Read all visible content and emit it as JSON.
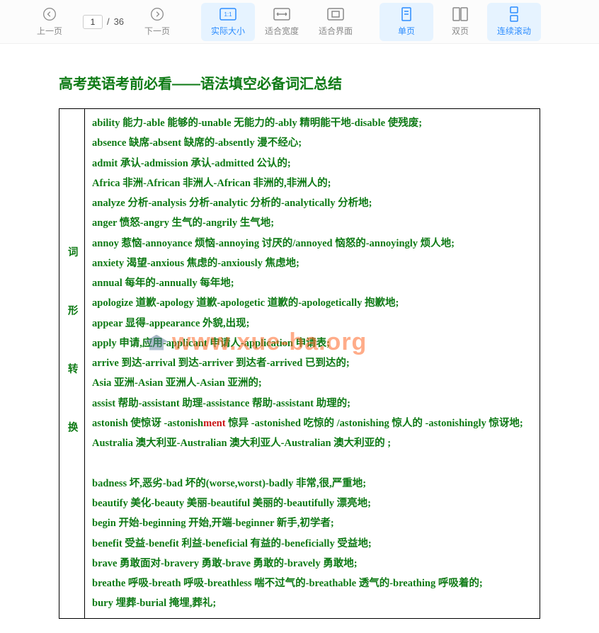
{
  "toolbar": {
    "prev": "上一页",
    "next": "下一页",
    "page_current": "1",
    "page_sep": "/",
    "page_total": "36",
    "actual_size": "实际大小",
    "fit_width": "适合宽度",
    "fit_page": "适合界面",
    "single_page": "单页",
    "double_page": "双页",
    "continuous": "连续滚动"
  },
  "doc": {
    "title": "高考英语考前必看——语法填空必备词汇总结",
    "row_label": "词形转换",
    "watermark": "www.xue-ba.org",
    "lines": [
      "ability 能力-able 能够的-unable 无能力的-ably 精明能干地-disable 使残废;",
      "absence 缺席-absent 缺席的-absently 漫不经心;",
      "admit 承认-admission 承认-admitted 公认的;",
      "Africa 非洲-African 非洲人-African 非洲的,非洲人的;",
      "analyze 分析-analysis 分析-analytic 分析的-analytically 分析地;",
      "anger 愤怒-angry 生气的-angrily 生气地;",
      "annoy 惹恼-annoyance 烦恼-annoying 讨厌的/annoyed 恼怒的-annoyingly 烦人地;",
      "anxiety 渴望-anxious 焦虑的-anxiously 焦虑地;",
      "annual 每年的-annually 每年地;",
      "apologize 道歉-apology 道歉-apologetic 道歉的-apologetically 抱歉地;",
      "appear 显得-appearance 外貌,出现;",
      "apply 申请,应用-applicant 申请人-application 申请表;",
      "arrive 到达-arrival 到达-arriver 到达者-arrived 已到达的;",
      "Asia 亚洲-Asian 亚洲人-Asian 亚洲的;",
      "assist 帮助-assistant 助理-assistance 帮助-assistant 助理的;",
      "astonish 使惊讶 -astonish<span class=\"red\">ment</span> 惊异 -astonished 吃惊的 /astonishing 惊人的 -astonishingly 惊讶地;",
      "Australia 澳大利亚-Australian 澳大利亚人-Australian 澳大利亚的 ;",
      "&nbsp;",
      "badness 坏,恶劣-bad 坏的(worse,worst)-badly 非常,很,严重地;",
      "beautify 美化-beauty 美丽-beautiful 美丽的-beautifully 漂亮地;",
      "begin 开始-beginning 开始,开端-beginner 新手,初学者;",
      "benefit 受益-benefit 利益-beneficial 有益的-beneficially 受益地;",
      "brave 勇敢面对-bravery 勇敢-brave 勇敢的-bravely 勇敢地;",
      "breathe 呼吸-breath 呼吸-breathless 喘不过气的-breathable 透气的-breathing 呼吸着的;",
      "bury 埋葬-burial 掩埋,葬礼;"
    ]
  },
  "colors": {
    "accent": "#2b8cff",
    "doc_green": "#0e7a15",
    "doc_red": "#c81414"
  }
}
